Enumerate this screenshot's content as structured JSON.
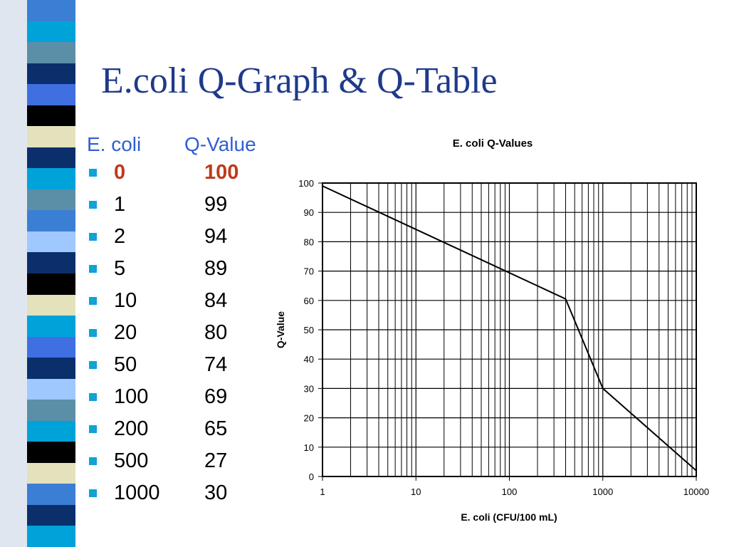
{
  "slide": {
    "title": "E.coli Q-Graph & Q-Table"
  },
  "decor": {
    "strip_colors": [
      "#3b7fd4",
      "#00a3d9",
      "#5b8fa8",
      "#0b2f6b",
      "#3f6fe0",
      "#000000",
      "#e4e2bc",
      "#0b2f6b",
      "#00a3d9",
      "#5b8fa8",
      "#3b7fd4",
      "#9fc8ff",
      "#0b2f6b",
      "#000000",
      "#e4e2bc",
      "#00a3d9",
      "#3f6fe0",
      "#0b2f6b",
      "#9fc8ff",
      "#5b8fa8",
      "#00a3d9",
      "#000000",
      "#e4e2bc",
      "#3b7fd4",
      "#0b2f6b",
      "#00a3d9"
    ]
  },
  "table": {
    "header": {
      "col1": "E. coli",
      "col2": "Q-Value"
    },
    "highlight_color": "#c0391b",
    "rows": [
      {
        "ecoli": "0",
        "q": "100",
        "highlight": true
      },
      {
        "ecoli": "1",
        "q": "99"
      },
      {
        "ecoli": "2",
        "q": "94"
      },
      {
        "ecoli": "5",
        "q": "89"
      },
      {
        "ecoli": "10",
        "q": "84"
      },
      {
        "ecoli": "20",
        "q": "80"
      },
      {
        "ecoli": "50",
        "q": "74"
      },
      {
        "ecoli": "100",
        "q": "69"
      },
      {
        "ecoli": "200",
        "q": "65"
      },
      {
        "ecoli": "500",
        "q": "27"
      },
      {
        "ecoli": "1000",
        "q": "30"
      }
    ]
  },
  "chart_data": {
    "type": "line",
    "title": "E. coli Q-Values",
    "xlabel": "E. coli (CFU/100 mL)",
    "ylabel": "Q-Value",
    "xscale": "log",
    "xlim": [
      1,
      10000
    ],
    "ylim": [
      0,
      100
    ],
    "xticks": [
      1,
      10,
      100,
      1000,
      10000
    ],
    "xtick_labels": [
      "1",
      "10",
      "100",
      "1000",
      "10000"
    ],
    "yticks": [
      0,
      10,
      20,
      30,
      40,
      50,
      60,
      70,
      80,
      90,
      100
    ],
    "grid": true,
    "legend": "none",
    "series": [
      {
        "x": [
          1,
          400,
          1000,
          10000
        ],
        "y": [
          99,
          60.5,
          30,
          2
        ]
      }
    ]
  }
}
